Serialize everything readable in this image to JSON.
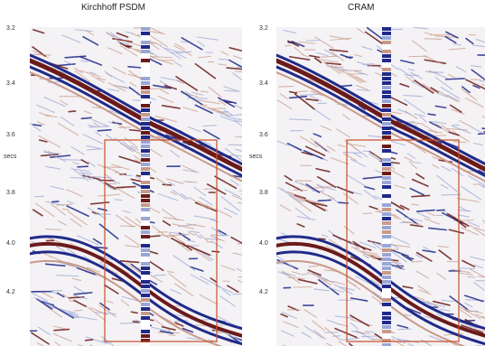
{
  "figure": {
    "panels": [
      {
        "title": "Kirchhoff PSDM",
        "time_unit": "secs",
        "time_ticks": [
          "3.2",
          "3.4",
          "3.6",
          "3.8",
          "4.0",
          "4.2"
        ]
      },
      {
        "title": "CRAM",
        "time_unit": "secs",
        "time_ticks": [
          "3.2",
          "3.4",
          "3.6",
          "3.8",
          "4.0",
          "4.2"
        ]
      }
    ],
    "colors": {
      "positive": "#6b1a1a",
      "positive_light": "#c89a8a",
      "negative": "#1f2a8a",
      "negative_light": "#9aa6d6",
      "background": "#f4f2f4",
      "highlight_box": "#c85028"
    }
  }
}
